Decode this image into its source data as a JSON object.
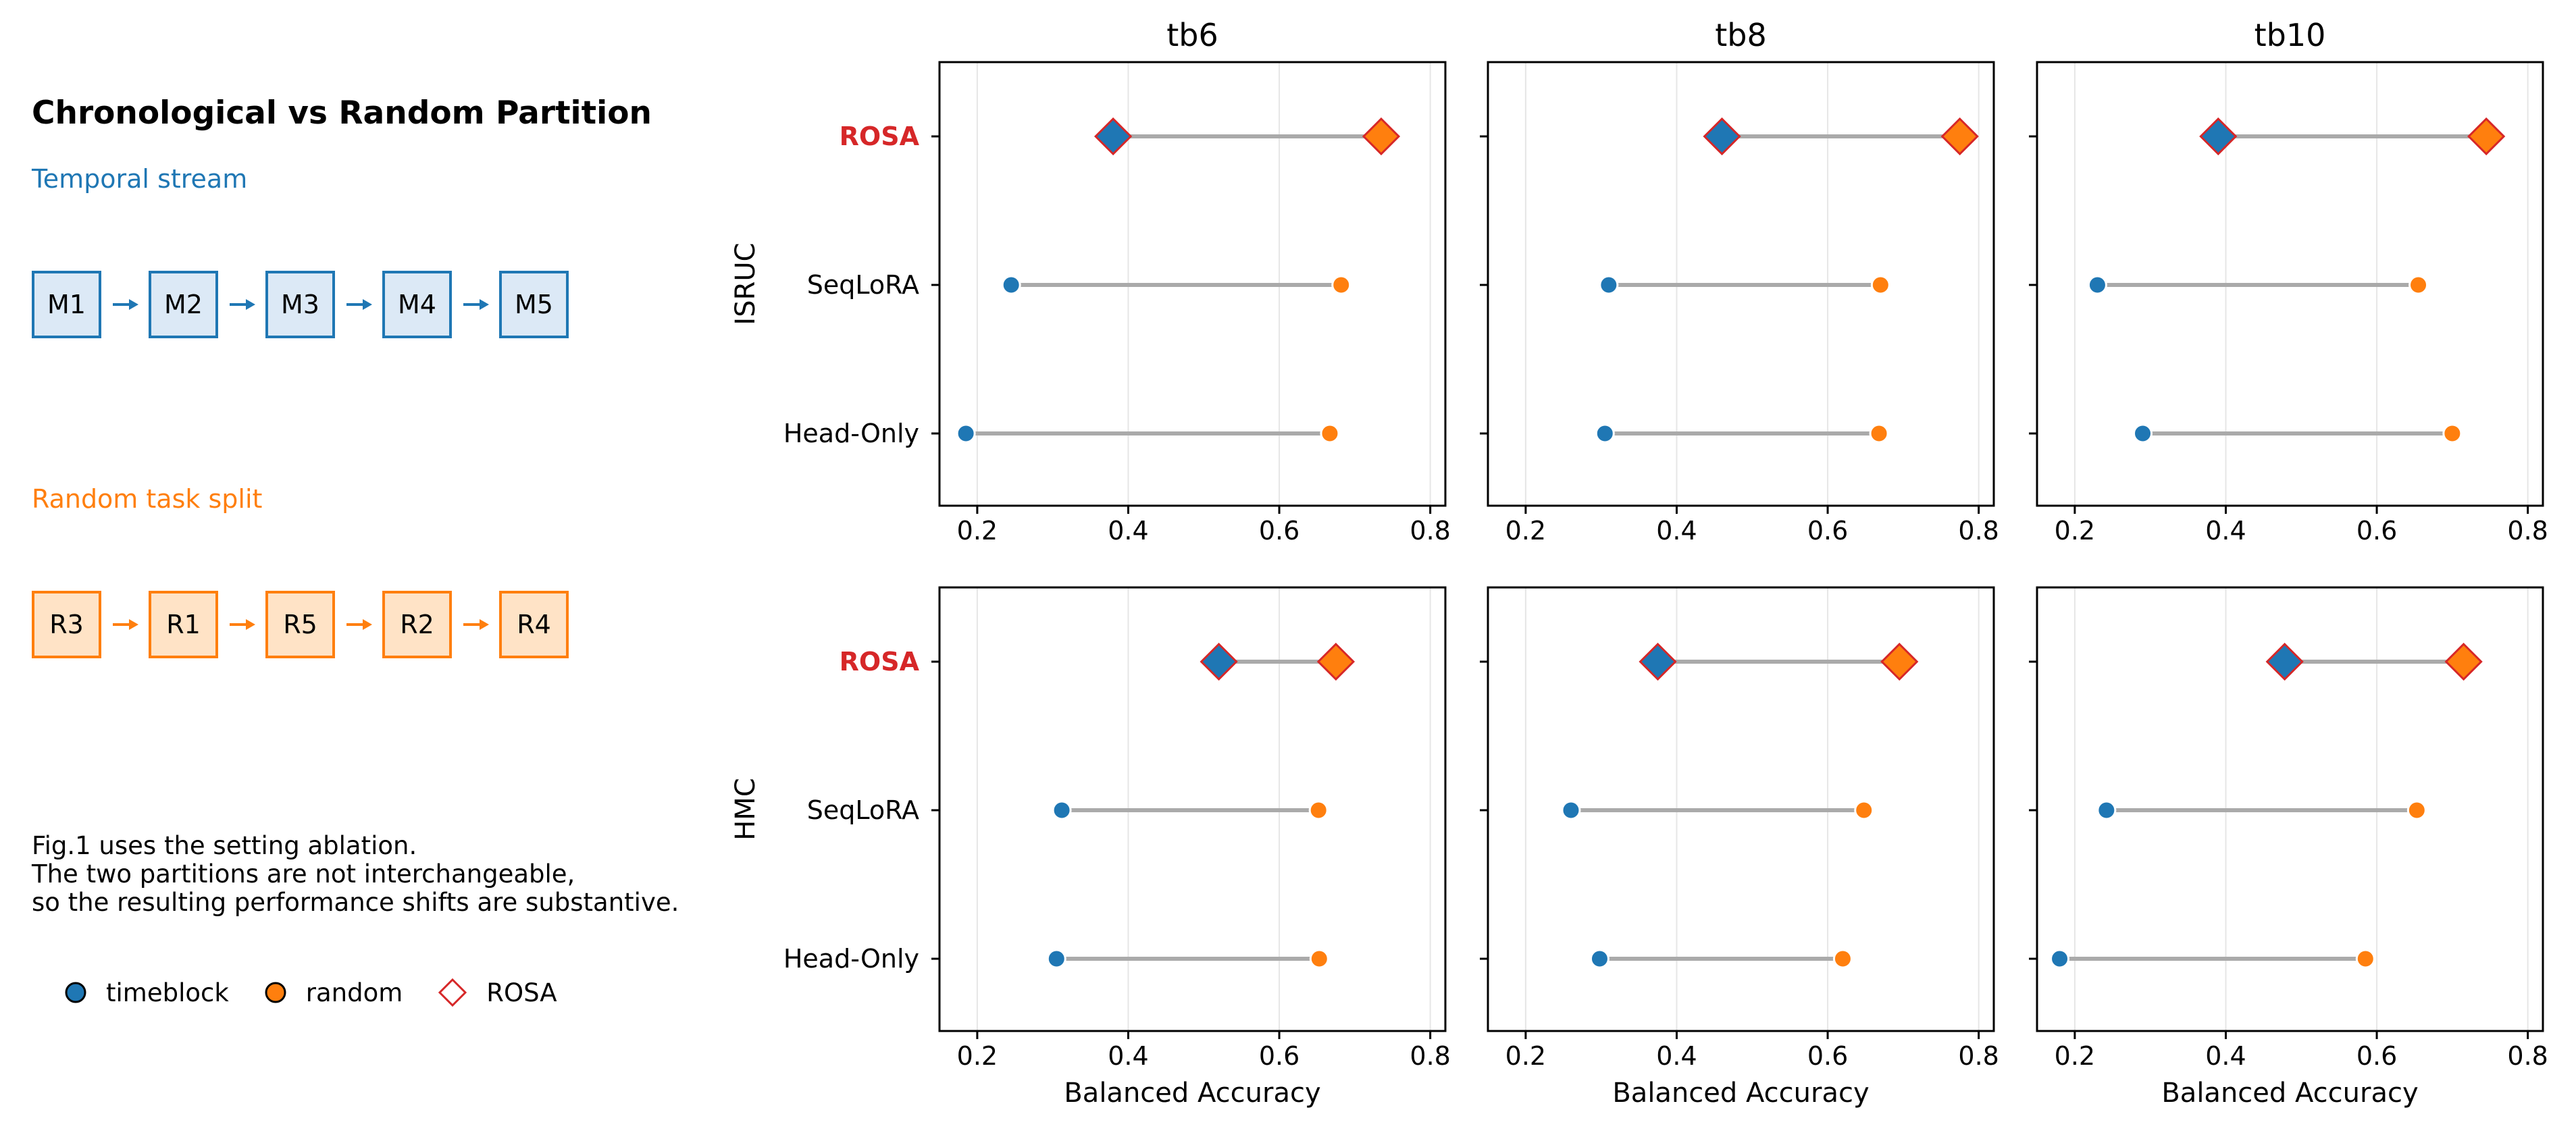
{
  "left_panel": {
    "title": "Chronological vs Random Partition",
    "temporal": {
      "label": "Temporal stream",
      "color": "#1f77b4",
      "fill": "#dce9f6",
      "boxes": [
        "M1",
        "M2",
        "M3",
        "M4",
        "M5"
      ]
    },
    "random": {
      "label": "Random task split",
      "color": "#ff7f0e",
      "fill": "#ffe3c6",
      "boxes": [
        "R3",
        "R1",
        "R5",
        "R2",
        "R4"
      ]
    },
    "note_lines": [
      "Fig.1 uses the setting ablation.",
      "The two partitions are not interchangeable,",
      "so the resulting performance shifts are substantive."
    ],
    "legend": [
      {
        "label": "timeblock",
        "marker": "circle",
        "color": "#1f77b4"
      },
      {
        "label": "random",
        "marker": "circle",
        "color": "#ff7f0e"
      },
      {
        "label": "ROSA",
        "marker": "diamond-open",
        "color": "#d62728"
      }
    ]
  },
  "chart_data": {
    "type": "dumbbell",
    "columns": [
      "tb6",
      "tb8",
      "tb10"
    ],
    "rows": [
      "ISRUC",
      "HMC"
    ],
    "methods": [
      "ROSA",
      "SeqLoRA",
      "Head-Only"
    ],
    "highlight_method": "ROSA",
    "highlight_color": "#d62728",
    "xlabel": "Balanced Accuracy",
    "xlim": [
      0.15,
      0.82
    ],
    "xticks": [
      0.2,
      0.4,
      0.6,
      0.8
    ],
    "xtick_labels": [
      "0.2",
      "0.4",
      "0.6",
      "0.8"
    ],
    "grid": "vertical",
    "series_colors": {
      "timeblock": "#1f77b4",
      "random": "#ff7f0e",
      "connector": "#aaaaaa"
    },
    "panels": [
      {
        "row": "ISRUC",
        "col": "tb6",
        "values": {
          "ROSA": {
            "timeblock": 0.38,
            "random": 0.735
          },
          "SeqLoRA": {
            "timeblock": 0.245,
            "random": 0.682
          },
          "Head-Only": {
            "timeblock": 0.185,
            "random": 0.667
          }
        }
      },
      {
        "row": "ISRUC",
        "col": "tb8",
        "values": {
          "ROSA": {
            "timeblock": 0.46,
            "random": 0.775
          },
          "SeqLoRA": {
            "timeblock": 0.31,
            "random": 0.67
          },
          "Head-Only": {
            "timeblock": 0.305,
            "random": 0.668
          }
        }
      },
      {
        "row": "ISRUC",
        "col": "tb10",
        "values": {
          "ROSA": {
            "timeblock": 0.39,
            "random": 0.745
          },
          "SeqLoRA": {
            "timeblock": 0.23,
            "random": 0.655
          },
          "Head-Only": {
            "timeblock": 0.29,
            "random": 0.7
          }
        }
      },
      {
        "row": "HMC",
        "col": "tb6",
        "values": {
          "ROSA": {
            "timeblock": 0.52,
            "random": 0.675
          },
          "SeqLoRA": {
            "timeblock": 0.312,
            "random": 0.652
          },
          "Head-Only": {
            "timeblock": 0.305,
            "random": 0.653
          }
        }
      },
      {
        "row": "HMC",
        "col": "tb8",
        "values": {
          "ROSA": {
            "timeblock": 0.375,
            "random": 0.695
          },
          "SeqLoRA": {
            "timeblock": 0.26,
            "random": 0.648
          },
          "Head-Only": {
            "timeblock": 0.298,
            "random": 0.62
          }
        }
      },
      {
        "row": "HMC",
        "col": "tb10",
        "values": {
          "ROSA": {
            "timeblock": 0.478,
            "random": 0.715
          },
          "SeqLoRA": {
            "timeblock": 0.242,
            "random": 0.653
          },
          "Head-Only": {
            "timeblock": 0.18,
            "random": 0.585
          }
        }
      }
    ]
  }
}
